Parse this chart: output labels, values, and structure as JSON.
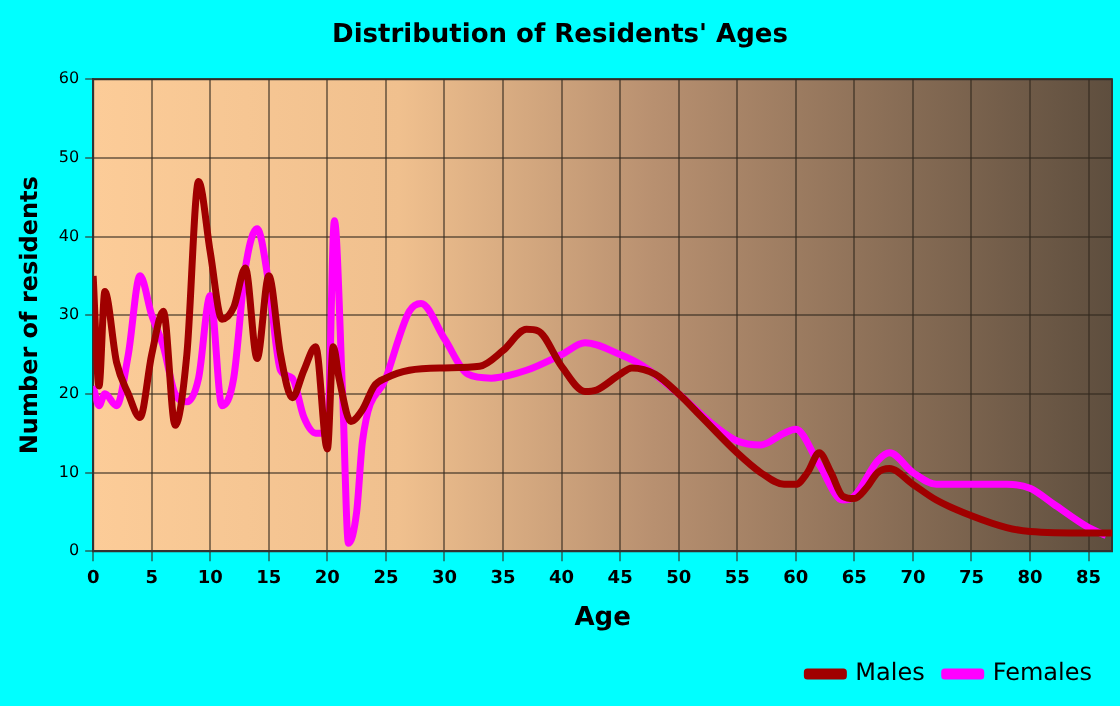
{
  "chart_data": {
    "type": "line",
    "title": "Distribution of Residents' Ages",
    "xlabel": "Age",
    "ylabel": "Number of residents",
    "xlim": [
      0,
      87
    ],
    "xticks": [
      0,
      5,
      10,
      15,
      20,
      25,
      30,
      35,
      40,
      45,
      50,
      55,
      60,
      65,
      70,
      75,
      80,
      85
    ],
    "ylim": [
      0,
      60
    ],
    "yticks": [
      0,
      10,
      20,
      30,
      40,
      50,
      60
    ],
    "grid": true,
    "legend": "bottom right",
    "marker": "none",
    "line_style": "solid",
    "series": [
      {
        "name": "Males",
        "color": "#a00000",
        "x": [
          0,
          0.5,
          1,
          2,
          3,
          4,
          5,
          6,
          7,
          8,
          9,
          10,
          11,
          12,
          13,
          14,
          15,
          16,
          17,
          18,
          19,
          20,
          20.5,
          21,
          22,
          23,
          24,
          25,
          27,
          30,
          33,
          35,
          37,
          38,
          40,
          42,
          43,
          45,
          46,
          48,
          50,
          52,
          55,
          57,
          59,
          60,
          61,
          62,
          63,
          64,
          65,
          66,
          67,
          68,
          70,
          72,
          75,
          78,
          80,
          85,
          87
        ],
        "values": [
          35,
          21,
          33,
          24,
          20,
          17,
          25,
          30.5,
          16,
          25,
          47,
          38,
          29.5,
          31,
          36,
          24.5,
          35,
          25,
          19.5,
          23,
          26,
          13,
          26,
          22,
          16.5,
          18,
          21,
          22,
          23,
          23.3,
          23.5,
          25.5,
          28.2,
          28,
          23.5,
          20.3,
          20.5,
          22.5,
          23.3,
          22.5,
          20,
          17,
          12.5,
          10,
          8.5,
          8.5,
          10,
          12.5,
          10,
          7,
          6.7,
          8,
          10,
          10.5,
          8.5,
          6.5,
          4.5,
          3,
          2.5,
          2.3,
          2.3
        ]
      },
      {
        "name": "Females",
        "color": "#ff00ff",
        "x": [
          0,
          0.5,
          1,
          2,
          3,
          4,
          5,
          6,
          7,
          8,
          9,
          10,
          11,
          12,
          13,
          14,
          15,
          16,
          17,
          18,
          19,
          20,
          20.6,
          21.3,
          21.8,
          22.5,
          23,
          25,
          27,
          28,
          30,
          32,
          34,
          37,
          40,
          42,
          45,
          47,
          50,
          53,
          55,
          57,
          59,
          60,
          62,
          64,
          65,
          67,
          68,
          70,
          72,
          75,
          78,
          80,
          82,
          85,
          86.5
        ],
        "values": [
          21,
          18.5,
          20,
          18.5,
          25,
          35,
          30,
          26,
          20,
          19,
          22,
          32.5,
          18.5,
          22,
          36,
          41,
          34,
          23,
          22,
          17,
          15,
          15,
          42,
          20,
          1,
          5,
          14,
          22,
          30.5,
          31.5,
          27,
          22.5,
          22,
          23,
          25,
          26.5,
          25,
          23.5,
          20,
          16,
          14,
          13.5,
          15,
          15.5,
          11,
          6.5,
          7,
          11.5,
          12.5,
          10,
          8.5,
          8.5,
          8.5,
          8,
          6,
          3,
          2
        ]
      }
    ]
  }
}
